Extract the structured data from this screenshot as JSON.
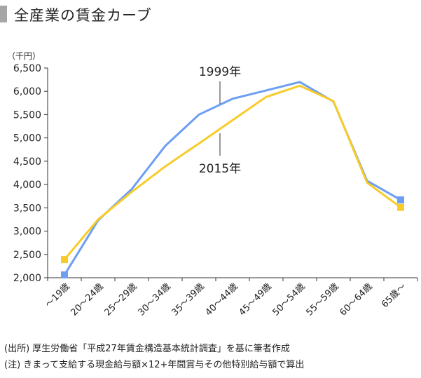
{
  "title": "全産業の賃金カーブ",
  "chart_data": {
    "type": "line",
    "unit_label": "（千円）",
    "categories": [
      "〜19歳",
      "20〜24歳",
      "25〜29歳",
      "30〜34歳",
      "35〜39歳",
      "40〜44歳",
      "45〜49歳",
      "50〜54歳",
      "55〜59歳",
      "60〜64歳",
      "65歳〜"
    ],
    "ylim": [
      2000,
      6500
    ],
    "yticks": [
      2000,
      2500,
      3000,
      3500,
      4000,
      4500,
      5000,
      5500,
      6000,
      6500
    ],
    "ytick_labels": [
      "2,000",
      "2,500",
      "3,000",
      "3,500",
      "4,000",
      "4,500",
      "5,000",
      "5,500",
      "6,000",
      "6,500"
    ],
    "series": [
      {
        "name": "1999年",
        "color": "#6d9ef2",
        "values": [
          2060,
          3230,
          3900,
          4830,
          5500,
          5840,
          6020,
          6200,
          5780,
          4080,
          3670
        ]
      },
      {
        "name": "2015年",
        "color": "#f7cc2a",
        "values": [
          2390,
          3250,
          3840,
          4390,
          4880,
          5380,
          5880,
          6120,
          5790,
          4040,
          3510
        ]
      }
    ],
    "grid": false,
    "legend": "inline labels"
  },
  "footer": {
    "source": "(出所) 厚生労働省「平成27年賃金構造基本統計調査」を基に筆者作成",
    "note": "(注) きまって支給する現金給与額×12+年間賞与その他特別給与額で算出"
  }
}
